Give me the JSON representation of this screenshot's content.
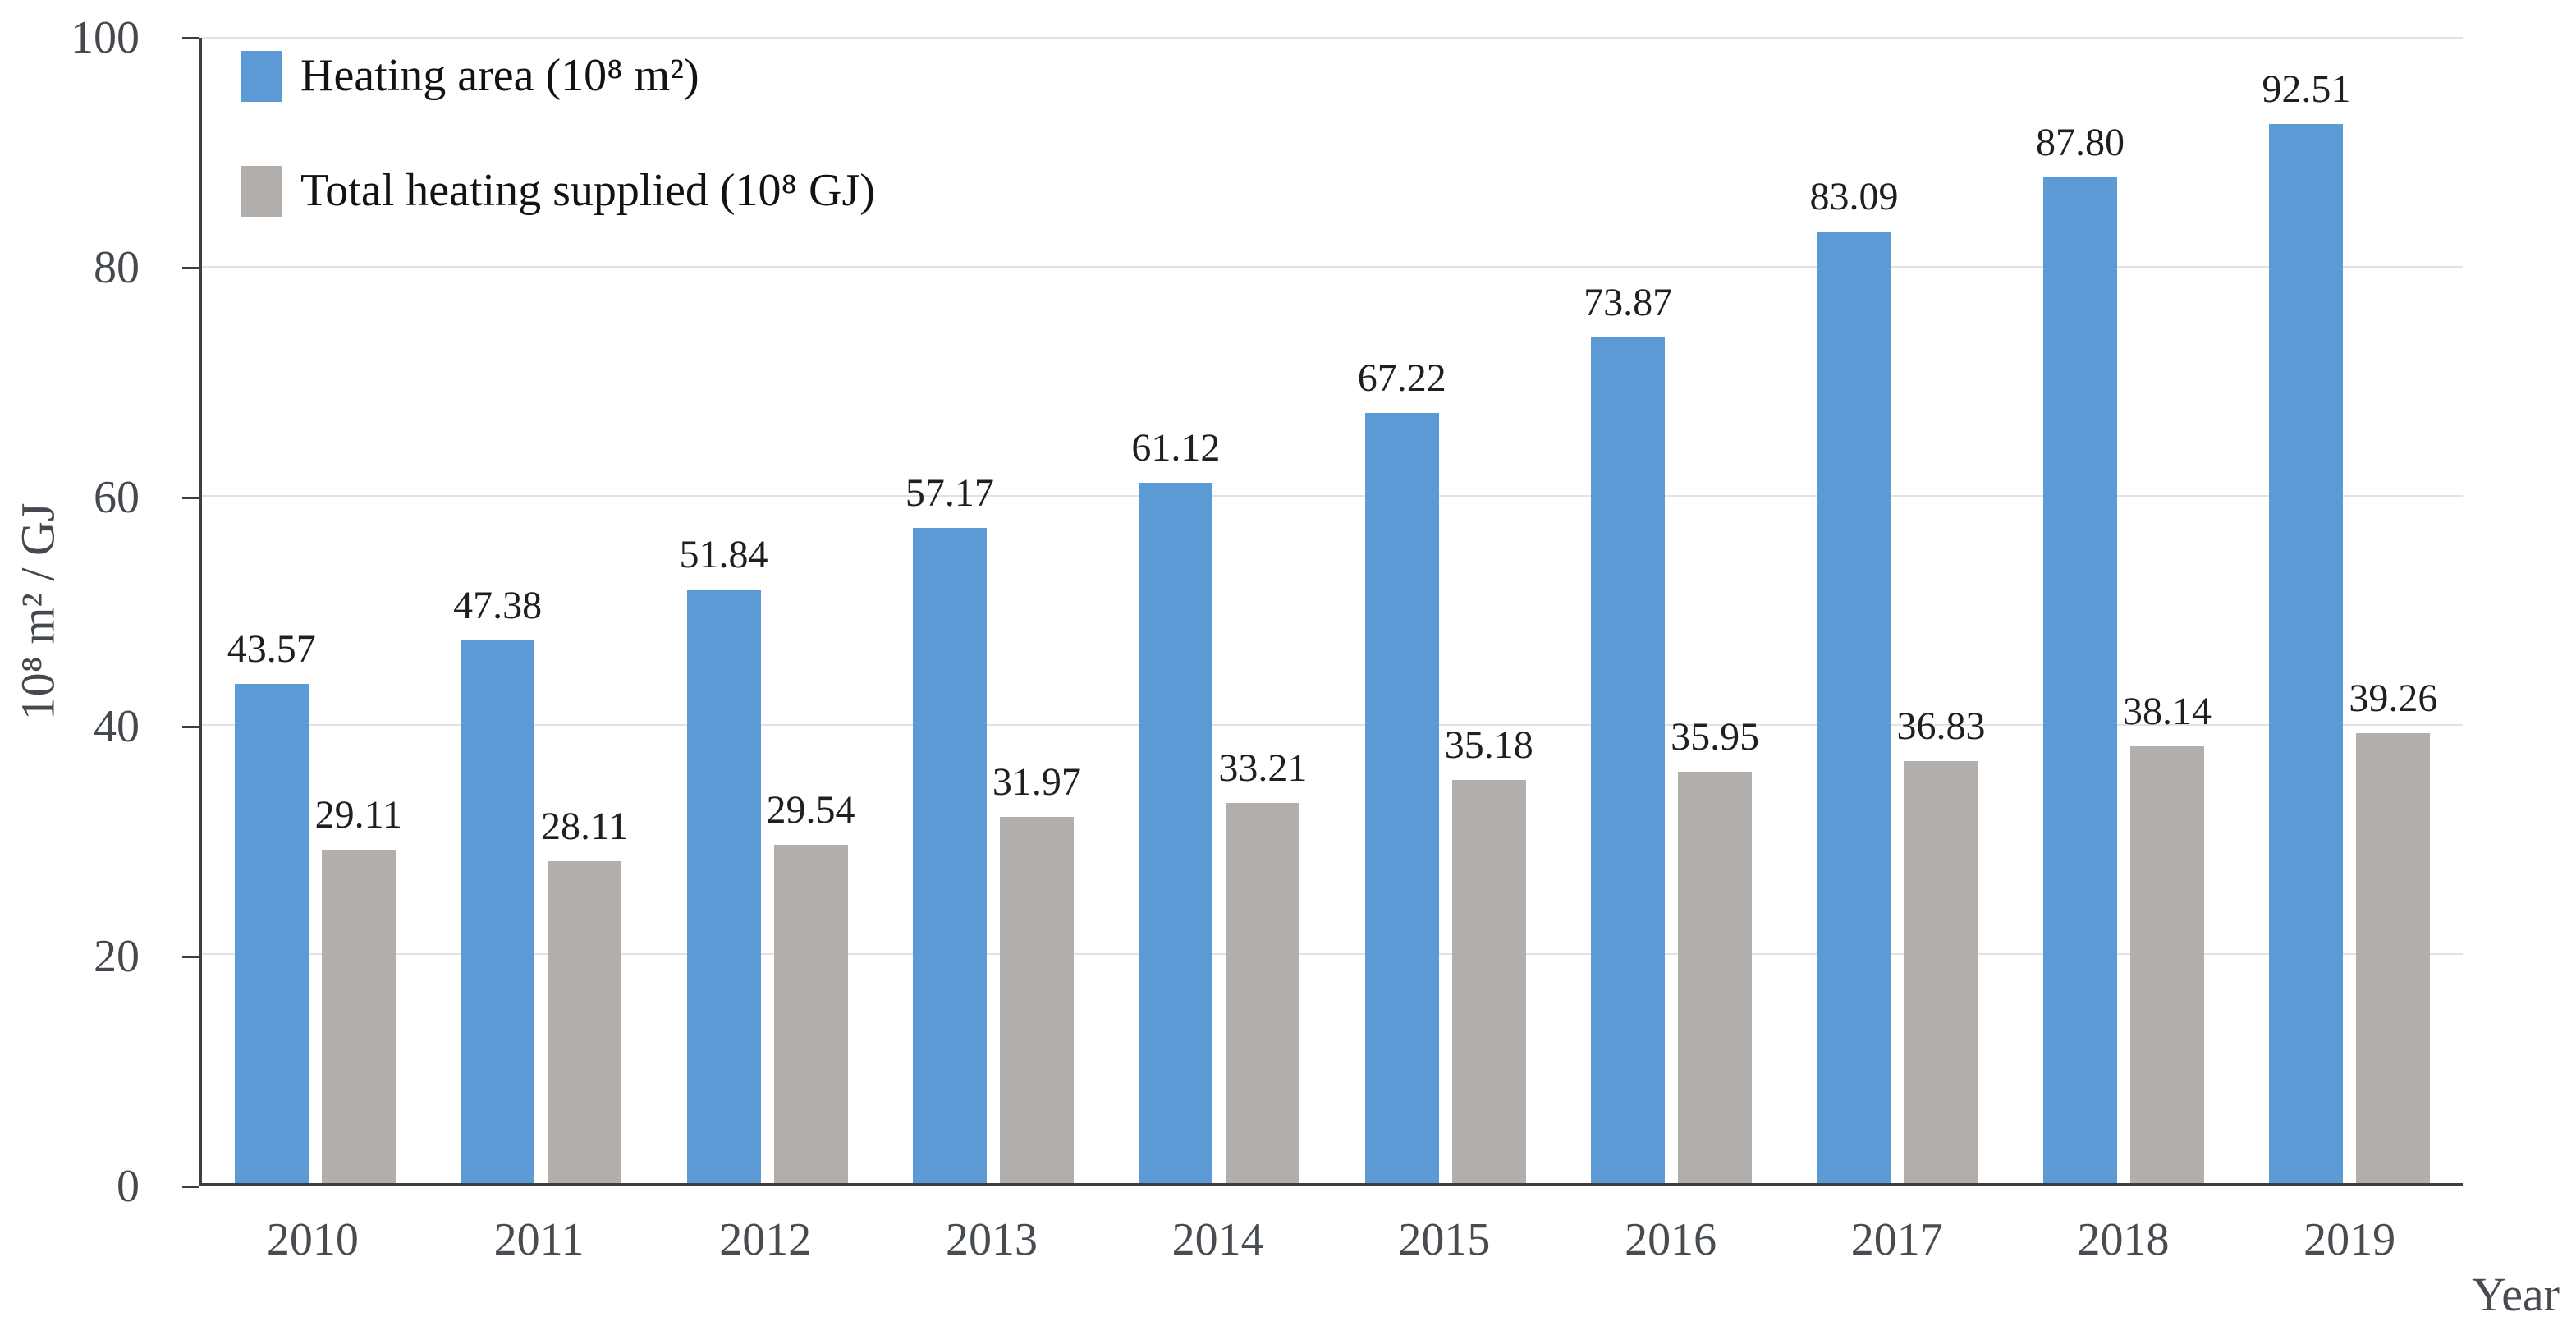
{
  "chart_data": {
    "type": "bar",
    "title": "",
    "categories": [
      "2010",
      "2011",
      "2012",
      "2013",
      "2014",
      "2015",
      "2016",
      "2017",
      "2018",
      "2019"
    ],
    "series": [
      {
        "name": "Heating area (10⁸ m²)",
        "color": "#5B9AD4",
        "values": [
          43.57,
          47.38,
          51.84,
          57.17,
          61.12,
          67.22,
          73.87,
          83.09,
          87.8,
          92.51
        ]
      },
      {
        "name": "Total heating supplied (10⁸ GJ)",
        "color": "#B1AEAC",
        "values": [
          29.11,
          28.11,
          29.54,
          31.97,
          33.21,
          35.18,
          35.95,
          36.83,
          38.14,
          39.26
        ]
      }
    ],
    "value_labels": true,
    "value_label_decimals": 2,
    "xlabel": "Year",
    "ylabel": "10⁸ m² / GJ",
    "ylim": [
      0,
      100
    ],
    "yticks": [
      0,
      20,
      40,
      60,
      80,
      100
    ],
    "grid": true,
    "legend_position": "top-left-inside",
    "colors": {
      "axis": "#3E3E3E",
      "gridline": "#E2E2E2",
      "tick_text": "#44494F",
      "value_label_text": "#1F1F1F"
    }
  }
}
